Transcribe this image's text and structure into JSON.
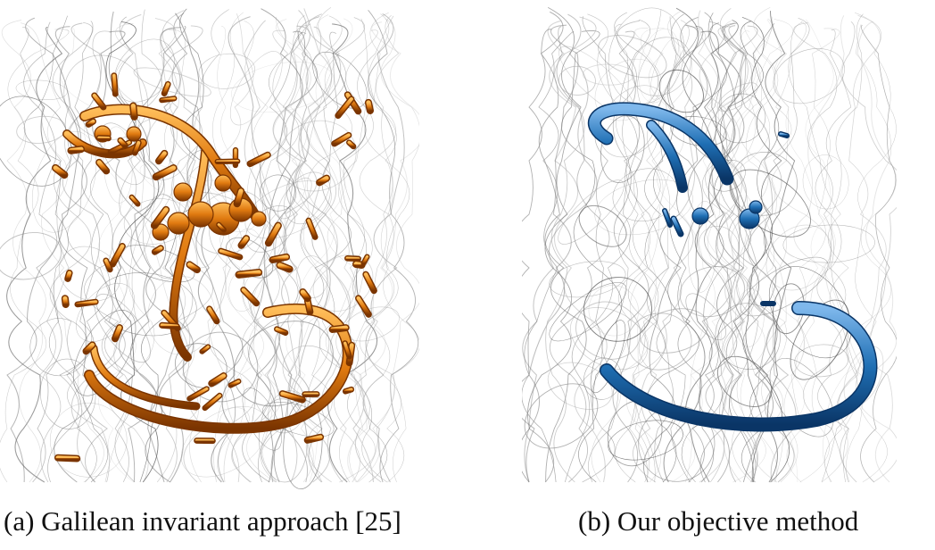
{
  "figure": {
    "panels": [
      {
        "id": "a",
        "caption": "(a) Galilean invariant approach [25]",
        "tube_color": "#e07a10",
        "tube_highlight": "#ffbe5a",
        "tube_shadow": "#7a3400"
      },
      {
        "id": "b",
        "caption": "(b) Our objective method",
        "tube_color": "#1f6fb4",
        "tube_highlight": "#7fb8ec",
        "tube_shadow": "#0a3566"
      }
    ]
  }
}
